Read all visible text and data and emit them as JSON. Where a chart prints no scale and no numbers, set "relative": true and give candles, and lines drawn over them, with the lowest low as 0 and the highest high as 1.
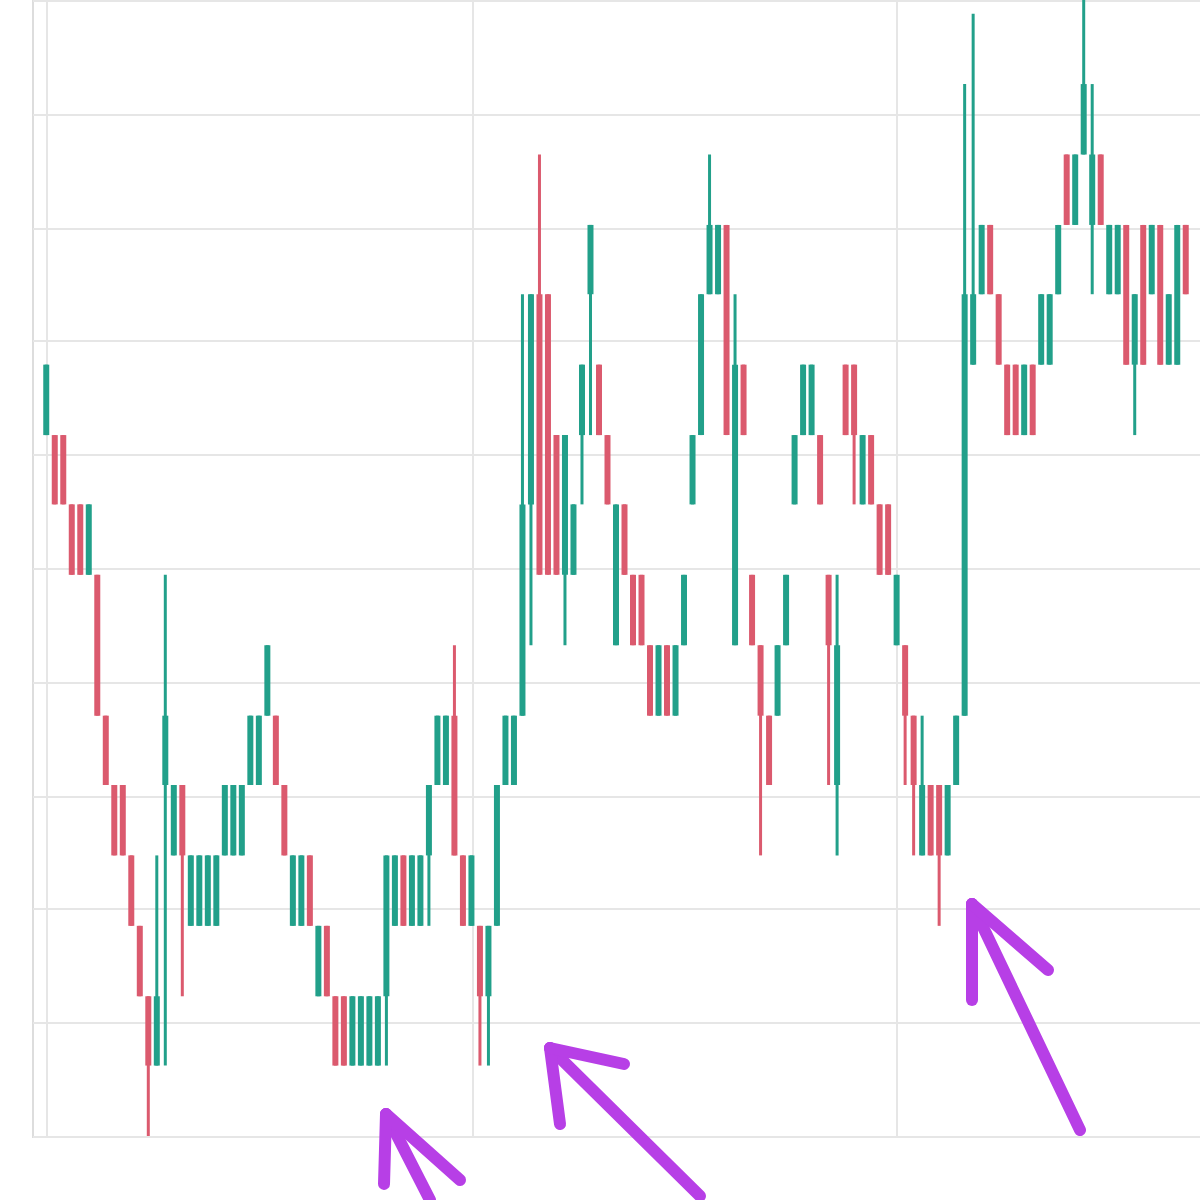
{
  "chart_data": {
    "type": "candlestick",
    "relative": true,
    "grid": true,
    "categories": [
      null,
      null,
      null,
      null,
      null,
      null,
      null,
      null,
      null,
      null,
      null,
      null,
      null,
      null,
      null,
      null,
      null,
      null,
      null,
      null,
      null,
      null,
      null,
      null,
      null,
      null,
      null,
      null,
      null,
      null,
      null,
      null,
      null,
      null,
      null,
      null,
      null,
      null,
      null,
      null,
      null,
      null,
      null,
      null,
      null,
      null,
      null,
      null,
      null,
      null,
      null,
      null,
      null,
      null,
      null,
      null,
      null,
      null,
      null,
      null,
      null,
      null,
      null,
      null,
      null,
      null,
      null,
      null,
      null,
      null,
      null,
      null,
      null,
      null,
      null,
      null,
      null,
      null,
      null,
      null,
      null,
      null,
      null,
      null,
      null,
      null,
      null,
      null,
      null,
      null,
      null,
      null,
      null,
      null,
      null,
      null,
      null,
      null,
      null,
      null,
      null,
      null,
      null,
      null,
      null,
      null,
      null,
      null,
      null,
      null,
      null,
      null,
      null,
      null,
      null,
      null,
      null,
      null,
      null,
      null,
      null,
      null,
      null,
      null,
      null,
      null,
      null,
      null,
      null,
      null,
      null,
      null,
      null,
      null,
      null
    ],
    "ohlc": [
      [
        0.617,
        0.679,
        0.617,
        0.679
      ],
      [
        0.617,
        0.617,
        0.556,
        0.556
      ],
      [
        0.617,
        0.617,
        0.556,
        0.556
      ],
      [
        0.556,
        0.556,
        0.494,
        0.494
      ],
      [
        0.556,
        0.556,
        0.494,
        0.494
      ],
      [
        0.494,
        0.556,
        0.494,
        0.556
      ],
      [
        0.494,
        0.494,
        0.37,
        0.37
      ],
      [
        0.37,
        0.37,
        0.309,
        0.309
      ],
      [
        0.309,
        0.309,
        0.247,
        0.247
      ],
      [
        0.309,
        0.309,
        0.247,
        0.247
      ],
      [
        0.247,
        0.247,
        0.185,
        0.185
      ],
      [
        0.185,
        0.185,
        0.123,
        0.123
      ],
      [
        0.123,
        0.123,
        0,
        0.062
      ],
      [
        0.062,
        0.247,
        0.062,
        0.123
      ],
      [
        0.309,
        0.494,
        0.062,
        0.37
      ],
      [
        0.247,
        0.309,
        0.247,
        0.309
      ],
      [
        0.309,
        0.309,
        0.123,
        0.247
      ],
      [
        0.185,
        0.247,
        0.185,
        0.247
      ],
      [
        0.185,
        0.247,
        0.185,
        0.247
      ],
      [
        0.185,
        0.247,
        0.185,
        0.247
      ],
      [
        0.185,
        0.247,
        0.185,
        0.247
      ],
      [
        0.247,
        0.309,
        0.247,
        0.309
      ],
      [
        0.247,
        0.309,
        0.247,
        0.309
      ],
      [
        0.247,
        0.309,
        0.247,
        0.309
      ],
      [
        0.309,
        0.37,
        0.309,
        0.37
      ],
      [
        0.309,
        0.37,
        0.309,
        0.37
      ],
      [
        0.37,
        0.432,
        0.37,
        0.432
      ],
      [
        0.37,
        0.37,
        0.309,
        0.309
      ],
      [
        0.309,
        0.309,
        0.247,
        0.247
      ],
      [
        0.185,
        0.247,
        0.185,
        0.247
      ],
      [
        0.185,
        0.247,
        0.185,
        0.247
      ],
      [
        0.247,
        0.247,
        0.185,
        0.185
      ],
      [
        0.123,
        0.185,
        0.123,
        0.185
      ],
      [
        0.185,
        0.185,
        0.123,
        0.123
      ],
      [
        0.123,
        0.123,
        0.062,
        0.062
      ],
      [
        0.123,
        0.123,
        0.062,
        0.062
      ],
      [
        0.062,
        0.123,
        0.062,
        0.123
      ],
      [
        0.062,
        0.123,
        0.062,
        0.123
      ],
      [
        0.062,
        0.123,
        0.062,
        0.123
      ],
      [
        0.062,
        0.123,
        0.062,
        0.123
      ],
      [
        0.123,
        0.247,
        0.062,
        0.247
      ],
      [
        0.185,
        0.247,
        0.185,
        0.247
      ],
      [
        0.247,
        0.247,
        0.185,
        0.185
      ],
      [
        0.185,
        0.247,
        0.185,
        0.247
      ],
      [
        0.185,
        0.247,
        0.185,
        0.247
      ],
      [
        0.247,
        0.309,
        0.185,
        0.309
      ],
      [
        0.309,
        0.37,
        0.309,
        0.37
      ],
      [
        0.309,
        0.37,
        0.309,
        0.37
      ],
      [
        0.37,
        0.432,
        0.247,
        0.247
      ],
      [
        0.247,
        0.247,
        0.185,
        0.185
      ],
      [
        0.185,
        0.247,
        0.185,
        0.247
      ],
      [
        0.185,
        0.185,
        0.062,
        0.123
      ],
      [
        0.123,
        0.185,
        0.062,
        0.185
      ],
      [
        0.185,
        0.309,
        0.185,
        0.309
      ],
      [
        0.309,
        0.37,
        0.309,
        0.37
      ],
      [
        0.309,
        0.37,
        0.309,
        0.37
      ],
      [
        0.37,
        0.741,
        0.37,
        0.556
      ],
      [
        0.556,
        0.741,
        0.432,
        0.741
      ],
      [
        0.741,
        0.864,
        0.494,
        0.494
      ],
      [
        0.741,
        0.741,
        0.494,
        0.494
      ],
      [
        0.617,
        0.617,
        0.494,
        0.494
      ],
      [
        0.494,
        0.617,
        0.432,
        0.617
      ],
      [
        0.494,
        0.556,
        0.494,
        0.556
      ],
      [
        0.617,
        0.679,
        0.556,
        0.679
      ],
      [
        0.741,
        0.802,
        0.617,
        0.802
      ],
      [
        0.679,
        0.679,
        0.617,
        0.617
      ],
      [
        0.617,
        0.617,
        0.556,
        0.556
      ],
      [
        0.432,
        0.556,
        0.432,
        0.556
      ],
      [
        0.556,
        0.556,
        0.494,
        0.494
      ],
      [
        0.494,
        0.494,
        0.432,
        0.432
      ],
      [
        0.494,
        0.494,
        0.432,
        0.432
      ],
      [
        0.432,
        0.432,
        0.37,
        0.37
      ],
      [
        0.37,
        0.432,
        0.37,
        0.432
      ],
      [
        0.432,
        0.432,
        0.37,
        0.37
      ],
      [
        0.37,
        0.432,
        0.37,
        0.432
      ],
      [
        0.432,
        0.494,
        0.432,
        0.494
      ],
      [
        0.556,
        0.617,
        0.556,
        0.617
      ],
      [
        0.617,
        0.741,
        0.617,
        0.741
      ],
      [
        0.741,
        0.864,
        0.741,
        0.802
      ],
      [
        0.741,
        0.802,
        0.741,
        0.802
      ],
      [
        0.802,
        0.802,
        0.617,
        0.617
      ],
      [
        0.432,
        0.741,
        0.432,
        0.679
      ],
      [
        0.679,
        0.679,
        0.617,
        0.617
      ],
      [
        0.494,
        0.494,
        0.432,
        0.432
      ],
      [
        0.432,
        0.432,
        0.247,
        0.37
      ],
      [
        0.37,
        0.37,
        0.309,
        0.309
      ],
      [
        0.37,
        0.432,
        0.37,
        0.432
      ],
      [
        0.432,
        0.494,
        0.432,
        0.494
      ],
      [
        0.556,
        0.617,
        0.556,
        0.617
      ],
      [
        0.617,
        0.679,
        0.617,
        0.679
      ],
      [
        0.617,
        0.679,
        0.617,
        0.679
      ],
      [
        0.617,
        0.617,
        0.556,
        0.556
      ],
      [
        0.494,
        0.494,
        0.309,
        0.432
      ],
      [
        0.309,
        0.494,
        0.247,
        0.432
      ],
      [
        0.679,
        0.679,
        0.617,
        0.617
      ],
      [
        0.679,
        0.679,
        0.556,
        0.617
      ],
      [
        0.556,
        0.617,
        0.556,
        0.617
      ],
      [
        0.617,
        0.617,
        0.556,
        0.556
      ],
      [
        0.556,
        0.556,
        0.494,
        0.494
      ],
      [
        0.556,
        0.556,
        0.494,
        0.494
      ],
      [
        0.432,
        0.494,
        0.432,
        0.494
      ],
      [
        0.432,
        0.432,
        0.309,
        0.37
      ],
      [
        0.37,
        0.37,
        0.247,
        0.309
      ],
      [
        0.247,
        0.37,
        0.247,
        0.309
      ],
      [
        0.309,
        0.309,
        0.247,
        0.247
      ],
      [
        0.309,
        0.309,
        0.185,
        0.247
      ],
      [
        0.247,
        0.309,
        0.247,
        0.309
      ],
      [
        0.309,
        0.37,
        0.309,
        0.37
      ],
      [
        0.37,
        0.926,
        0.37,
        0.741
      ],
      [
        0.679,
        0.988,
        0.679,
        0.741
      ],
      [
        0.741,
        0.802,
        0.741,
        0.802
      ],
      [
        0.802,
        0.802,
        0.741,
        0.741
      ],
      [
        0.741,
        0.741,
        0.679,
        0.679
      ],
      [
        0.679,
        0.679,
        0.617,
        0.617
      ],
      [
        0.679,
        0.679,
        0.617,
        0.617
      ],
      [
        0.617,
        0.679,
        0.617,
        0.679
      ],
      [
        0.679,
        0.679,
        0.617,
        0.617
      ],
      [
        0.679,
        0.741,
        0.679,
        0.741
      ],
      [
        0.679,
        0.741,
        0.679,
        0.741
      ],
      [
        0.741,
        0.802,
        0.741,
        0.802
      ],
      [
        0.864,
        0.864,
        0.802,
        0.802
      ],
      [
        0.802,
        0.864,
        0.802,
        0.864
      ],
      [
        0.864,
        1,
        0.864,
        0.926
      ],
      [
        0.802,
        0.926,
        0.741,
        0.864
      ],
      [
        0.864,
        0.864,
        0.802,
        0.802
      ],
      [
        0.741,
        0.802,
        0.741,
        0.802
      ],
      [
        0.741,
        0.802,
        0.741,
        0.802
      ],
      [
        0.802,
        0.802,
        0.679,
        0.679
      ],
      [
        0.679,
        0.741,
        0.617,
        0.741
      ],
      [
        0.802,
        0.802,
        0.679,
        0.679
      ],
      [
        0.741,
        0.802,
        0.741,
        0.802
      ],
      [
        0.802,
        0.802,
        0.679,
        0.679
      ],
      [
        0.679,
        0.741,
        0.679,
        0.741
      ],
      [
        0.679,
        0.802,
        0.679,
        0.802
      ],
      [
        0.802,
        0.802,
        0.741,
        0.741
      ]
    ],
    "colors": [
      "#22a08a",
      "#db5a6e",
      "#db5a6e",
      "#db5a6e",
      "#db5a6e",
      "#22a08a",
      "#db5a6e",
      "#db5a6e",
      "#db5a6e",
      "#db5a6e",
      "#db5a6e",
      "#db5a6e",
      "#db5a6e",
      "#22a08a",
      "#22a08a",
      "#22a08a",
      "#db5a6e",
      "#22a08a",
      "#22a08a",
      "#22a08a",
      "#22a08a",
      "#22a08a",
      "#22a08a",
      "#22a08a",
      "#22a08a",
      "#22a08a",
      "#22a08a",
      "#db5a6e",
      "#db5a6e",
      "#22a08a",
      "#22a08a",
      "#db5a6e",
      "#22a08a",
      "#db5a6e",
      "#db5a6e",
      "#db5a6e",
      "#22a08a",
      "#22a08a",
      "#22a08a",
      "#22a08a",
      "#22a08a",
      "#22a08a",
      "#db5a6e",
      "#22a08a",
      "#22a08a",
      "#22a08a",
      "#22a08a",
      "#22a08a",
      "#db5a6e",
      "#db5a6e",
      "#22a08a",
      "#db5a6e",
      "#22a08a",
      "#22a08a",
      "#22a08a",
      "#22a08a",
      "#22a08a",
      "#22a08a",
      "#db5a6e",
      "#db5a6e",
      "#db5a6e",
      "#22a08a",
      "#22a08a",
      "#22a08a",
      "#22a08a",
      "#db5a6e",
      "#db5a6e",
      "#22a08a",
      "#db5a6e",
      "#db5a6e",
      "#db5a6e",
      "#db5a6e",
      "#22a08a",
      "#db5a6e",
      "#22a08a",
      "#22a08a",
      "#22a08a",
      "#22a08a",
      "#22a08a",
      "#22a08a",
      "#db5a6e",
      "#22a08a",
      "#db5a6e",
      "#db5a6e",
      "#db5a6e",
      "#db5a6e",
      "#22a08a",
      "#22a08a",
      "#22a08a",
      "#22a08a",
      "#22a08a",
      "#db5a6e",
      "#db5a6e",
      "#22a08a",
      "#db5a6e",
      "#db5a6e",
      "#22a08a",
      "#db5a6e",
      "#db5a6e",
      "#db5a6e",
      "#22a08a",
      "#db5a6e",
      "#db5a6e",
      "#22a08a",
      "#db5a6e",
      "#db5a6e",
      "#22a08a",
      "#22a08a",
      "#22a08a",
      "#22a08a",
      "#22a08a",
      "#db5a6e",
      "#db5a6e",
      "#db5a6e",
      "#db5a6e",
      "#22a08a",
      "#db5a6e",
      "#22a08a",
      "#22a08a",
      "#22a08a",
      "#db5a6e",
      "#22a08a",
      "#22a08a",
      "#22a08a",
      "#db5a6e",
      "#22a08a",
      "#22a08a",
      "#db5a6e",
      "#22a08a",
      "#db5a6e",
      "#22a08a",
      "#db5a6e",
      "#22a08a",
      "#22a08a",
      "#db5a6e"
    ]
  }
}
